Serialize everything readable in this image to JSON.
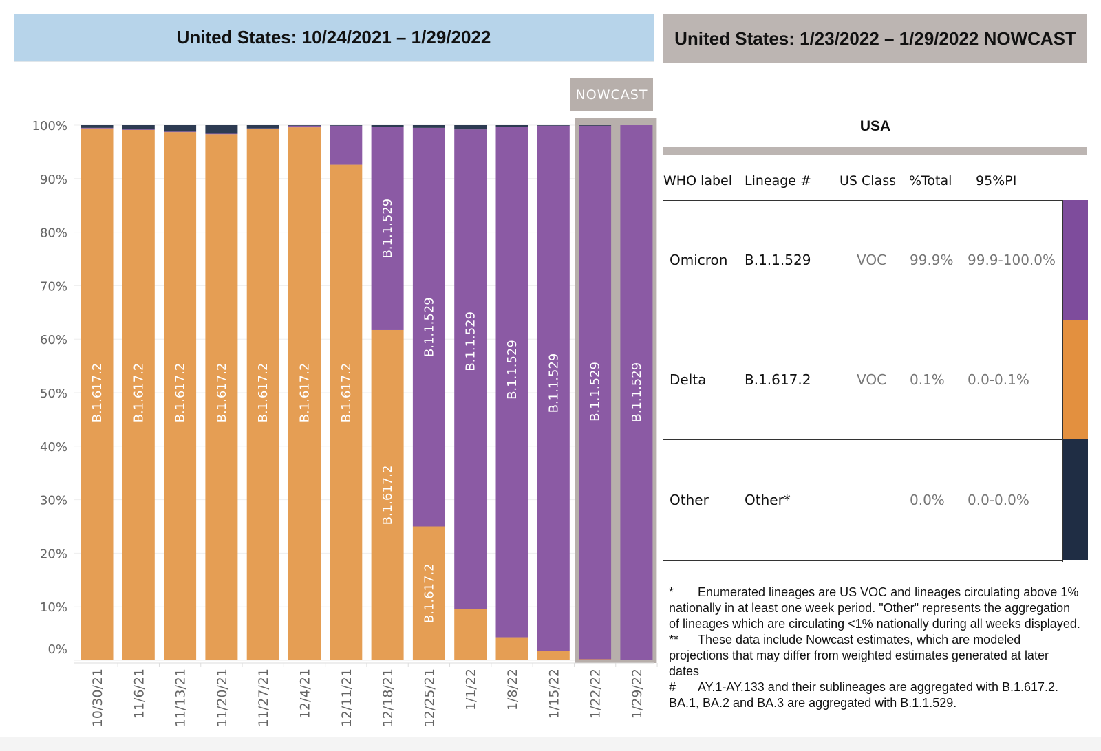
{
  "header": {
    "left_title": "United States: 10/24/2021 – 1/29/2022",
    "right_title": "United States: 1/23/2022 – 1/29/2022 NOWCAST",
    "nowcast_tag": "NOWCAST"
  },
  "chart_data": {
    "type": "bar",
    "stacked": true,
    "title": "United States: 10/24/2021 – 1/29/2022",
    "xlabel": "",
    "ylabel": "",
    "ylim": [
      0,
      100
    ],
    "y_ticks": [
      "0%",
      "10%",
      "20%",
      "30%",
      "40%",
      "50%",
      "60%",
      "70%",
      "80%",
      "90%",
      "100%"
    ],
    "categories": [
      "10/30/21",
      "11/6/21",
      "11/13/21",
      "11/20/21",
      "11/27/21",
      "12/4/21",
      "12/11/21",
      "12/18/21",
      "12/25/21",
      "1/1/22",
      "1/8/22",
      "1/15/22",
      "1/22/22",
      "1/29/22"
    ],
    "nowcast_categories": [
      "1/22/22",
      "1/29/22"
    ],
    "series": [
      {
        "name": "B.1.617.2",
        "who_label": "Delta",
        "color": "#e59e54",
        "values": [
          99.4,
          99.1,
          98.7,
          98.3,
          99.3,
          99.6,
          92.6,
          61.7,
          25.0,
          9.6,
          4.3,
          1.8,
          0.2,
          0.1
        ]
      },
      {
        "name": "B.1.1.529",
        "who_label": "Omicron",
        "color": "#8b5aa4",
        "values": [
          0.1,
          0.1,
          0.1,
          0.1,
          0.1,
          0.3,
          7.3,
          38.0,
          74.5,
          89.6,
          95.4,
          98.1,
          99.7,
          99.9
        ]
      },
      {
        "name": "Other",
        "who_label": "Other",
        "color": "#2d3b52",
        "values": [
          0.5,
          0.8,
          1.2,
          1.6,
          0.6,
          0.1,
          0.1,
          0.3,
          0.5,
          0.8,
          0.3,
          0.1,
          0.1,
          0.0
        ]
      }
    ],
    "bar_labels": [
      {
        "category": "10/30/21",
        "series": "B.1.617.2",
        "text": "B.1.617.2"
      },
      {
        "category": "11/6/21",
        "series": "B.1.617.2",
        "text": "B.1.617.2"
      },
      {
        "category": "11/13/21",
        "series": "B.1.617.2",
        "text": "B.1.617.2"
      },
      {
        "category": "11/20/21",
        "series": "B.1.617.2",
        "text": "B.1.617.2"
      },
      {
        "category": "11/27/21",
        "series": "B.1.617.2",
        "text": "B.1.617.2"
      },
      {
        "category": "12/4/21",
        "series": "B.1.617.2",
        "text": "B.1.617.2"
      },
      {
        "category": "12/11/21",
        "series": "B.1.617.2",
        "text": "B.1.617.2"
      },
      {
        "category": "12/18/21",
        "series": "B.1.617.2",
        "text": "B.1.617.2"
      },
      {
        "category": "12/18/21",
        "series": "B.1.1.529",
        "text": "B.1.1.529"
      },
      {
        "category": "12/25/21",
        "series": "B.1.617.2",
        "text": "B.1.617.2"
      },
      {
        "category": "12/25/21",
        "series": "B.1.1.529",
        "text": "B.1.1.529"
      },
      {
        "category": "1/1/22",
        "series": "B.1.1.529",
        "text": "B.1.1.529"
      },
      {
        "category": "1/8/22",
        "series": "B.1.1.529",
        "text": "B.1.1.529"
      },
      {
        "category": "1/15/22",
        "series": "B.1.1.529",
        "text": "B.1.1.529"
      },
      {
        "category": "1/22/22",
        "series": "B.1.1.529",
        "text": "B.1.1.529"
      },
      {
        "category": "1/29/22",
        "series": "B.1.1.529",
        "text": "B.1.1.529"
      }
    ]
  },
  "table": {
    "region": "USA",
    "headers": {
      "who": "WHO label",
      "lineage": "Lineage #",
      "us_class": "US Class",
      "total": "%Total",
      "pi": "95%PI"
    },
    "rows": [
      {
        "who": "Omicron",
        "lineage": "B.1.1.529",
        "us_class": "VOC",
        "total": "99.9%",
        "pi": "99.9-100.0%",
        "color": "#7e4c9c"
      },
      {
        "who": "Delta",
        "lineage": "B.1.617.2",
        "us_class": "VOC",
        "total": "0.1%",
        "pi": "0.0-0.1%",
        "color": "#e3903f"
      },
      {
        "who": "Other",
        "lineage": "Other*",
        "us_class": "",
        "total": "0.0%",
        "pi": "0.0-0.0%",
        "color": "#1f2d44"
      }
    ]
  },
  "footnotes": [
    {
      "mark": "*",
      "text": "Enumerated lineages are US VOC and lineages circulating above 1% nationally in at least one week period. \"Other\" represents the aggregation of lineages which are circulating <1% nationally during all weeks displayed."
    },
    {
      "mark": "**",
      "text": "These data include Nowcast estimates, which are modeled projections that may differ from weighted estimates generated at later dates"
    },
    {
      "mark": "#",
      "text": "AY.1-AY.133 and their sublineages are aggregated with B.1.617.2. BA.1, BA.2 and BA.3 are aggregated with B.1.1.529."
    }
  ]
}
